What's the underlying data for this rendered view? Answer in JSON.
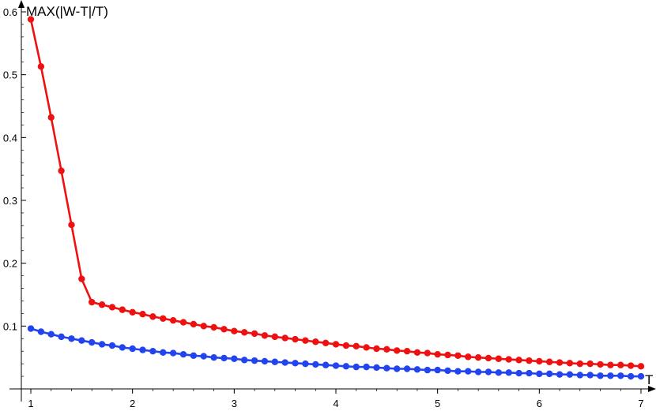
{
  "chart_data": {
    "type": "line",
    "title": "",
    "xlabel": "T",
    "ylabel": "MAX(|W-T|/T)",
    "xlim": [
      0.9,
      7.05
    ],
    "ylim": [
      -0.003,
      0.605
    ],
    "x_ticks": [
      1,
      2,
      3,
      4,
      5,
      6,
      7
    ],
    "y_ticks": [
      0.1,
      0.2,
      0.3,
      0.4,
      0.5,
      0.6
    ],
    "grid": false,
    "legend": "none",
    "series": [
      {
        "color": "#ee1111",
        "marker": "circle",
        "points": [
          [
            1.0,
            0.588
          ],
          [
            1.1,
            0.513
          ],
          [
            1.2,
            0.432
          ],
          [
            1.3,
            0.347
          ],
          [
            1.4,
            0.261
          ],
          [
            1.5,
            0.175
          ],
          [
            1.6,
            0.138
          ],
          [
            1.7,
            0.134
          ],
          [
            1.8,
            0.13
          ],
          [
            1.9,
            0.126
          ],
          [
            2.0,
            0.122
          ],
          [
            2.1,
            0.119
          ],
          [
            2.2,
            0.115
          ],
          [
            2.3,
            0.112
          ],
          [
            2.4,
            0.109
          ],
          [
            2.5,
            0.106
          ],
          [
            2.6,
            0.103
          ],
          [
            2.7,
            0.1
          ],
          [
            2.8,
            0.098
          ],
          [
            2.9,
            0.095
          ],
          [
            3.0,
            0.092
          ],
          [
            3.1,
            0.09
          ],
          [
            3.2,
            0.088
          ],
          [
            3.3,
            0.085
          ],
          [
            3.4,
            0.083
          ],
          [
            3.5,
            0.081
          ],
          [
            3.6,
            0.079
          ],
          [
            3.7,
            0.077
          ],
          [
            3.8,
            0.075
          ],
          [
            3.9,
            0.073
          ],
          [
            4.0,
            0.071
          ],
          [
            4.1,
            0.069
          ],
          [
            4.2,
            0.068
          ],
          [
            4.3,
            0.066
          ],
          [
            4.4,
            0.064
          ],
          [
            4.5,
            0.063
          ],
          [
            4.6,
            0.061
          ],
          [
            4.7,
            0.06
          ],
          [
            4.8,
            0.058
          ],
          [
            4.9,
            0.057
          ],
          [
            5.0,
            0.055
          ],
          [
            5.1,
            0.054
          ],
          [
            5.2,
            0.053
          ],
          [
            5.3,
            0.051
          ],
          [
            5.4,
            0.05
          ],
          [
            5.5,
            0.049
          ],
          [
            5.6,
            0.048
          ],
          [
            5.7,
            0.047
          ],
          [
            5.8,
            0.046
          ],
          [
            5.9,
            0.045
          ],
          [
            6.0,
            0.044
          ],
          [
            6.1,
            0.043
          ],
          [
            6.2,
            0.042
          ],
          [
            6.3,
            0.041
          ],
          [
            6.4,
            0.04
          ],
          [
            6.5,
            0.04
          ],
          [
            6.6,
            0.039
          ],
          [
            6.7,
            0.038
          ],
          [
            6.8,
            0.038
          ],
          [
            6.9,
            0.037
          ],
          [
            7.0,
            0.036
          ]
        ]
      },
      {
        "color": "#2244ee",
        "marker": "circle",
        "points": [
          [
            1.0,
            0.096
          ],
          [
            1.1,
            0.091
          ],
          [
            1.2,
            0.087
          ],
          [
            1.3,
            0.083
          ],
          [
            1.4,
            0.08
          ],
          [
            1.5,
            0.077
          ],
          [
            1.6,
            0.074
          ],
          [
            1.7,
            0.071
          ],
          [
            1.8,
            0.069
          ],
          [
            1.9,
            0.066
          ],
          [
            2.0,
            0.064
          ],
          [
            2.1,
            0.062
          ],
          [
            2.2,
            0.06
          ],
          [
            2.3,
            0.058
          ],
          [
            2.4,
            0.057
          ],
          [
            2.5,
            0.055
          ],
          [
            2.6,
            0.053
          ],
          [
            2.7,
            0.052
          ],
          [
            2.8,
            0.05
          ],
          [
            2.9,
            0.049
          ],
          [
            3.0,
            0.048
          ],
          [
            3.1,
            0.046
          ],
          [
            3.2,
            0.045
          ],
          [
            3.3,
            0.044
          ],
          [
            3.4,
            0.043
          ],
          [
            3.5,
            0.042
          ],
          [
            3.6,
            0.041
          ],
          [
            3.7,
            0.04
          ],
          [
            3.8,
            0.039
          ],
          [
            3.9,
            0.038
          ],
          [
            4.0,
            0.037
          ],
          [
            4.1,
            0.036
          ],
          [
            4.2,
            0.035
          ],
          [
            4.3,
            0.035
          ],
          [
            4.4,
            0.034
          ],
          [
            4.5,
            0.033
          ],
          [
            4.6,
            0.032
          ],
          [
            4.7,
            0.032
          ],
          [
            4.8,
            0.031
          ],
          [
            4.9,
            0.03
          ],
          [
            5.0,
            0.03
          ],
          [
            5.1,
            0.029
          ],
          [
            5.2,
            0.028
          ],
          [
            5.3,
            0.028
          ],
          [
            5.4,
            0.027
          ],
          [
            5.5,
            0.027
          ],
          [
            5.6,
            0.026
          ],
          [
            5.7,
            0.026
          ],
          [
            5.8,
            0.025
          ],
          [
            5.9,
            0.025
          ],
          [
            6.0,
            0.024
          ],
          [
            6.1,
            0.024
          ],
          [
            6.2,
            0.023
          ],
          [
            6.3,
            0.023
          ],
          [
            6.4,
            0.022
          ],
          [
            6.5,
            0.022
          ],
          [
            6.6,
            0.021
          ],
          [
            6.7,
            0.021
          ],
          [
            6.8,
            0.021
          ],
          [
            6.9,
            0.02
          ],
          [
            7.0,
            0.02
          ]
        ]
      }
    ]
  }
}
